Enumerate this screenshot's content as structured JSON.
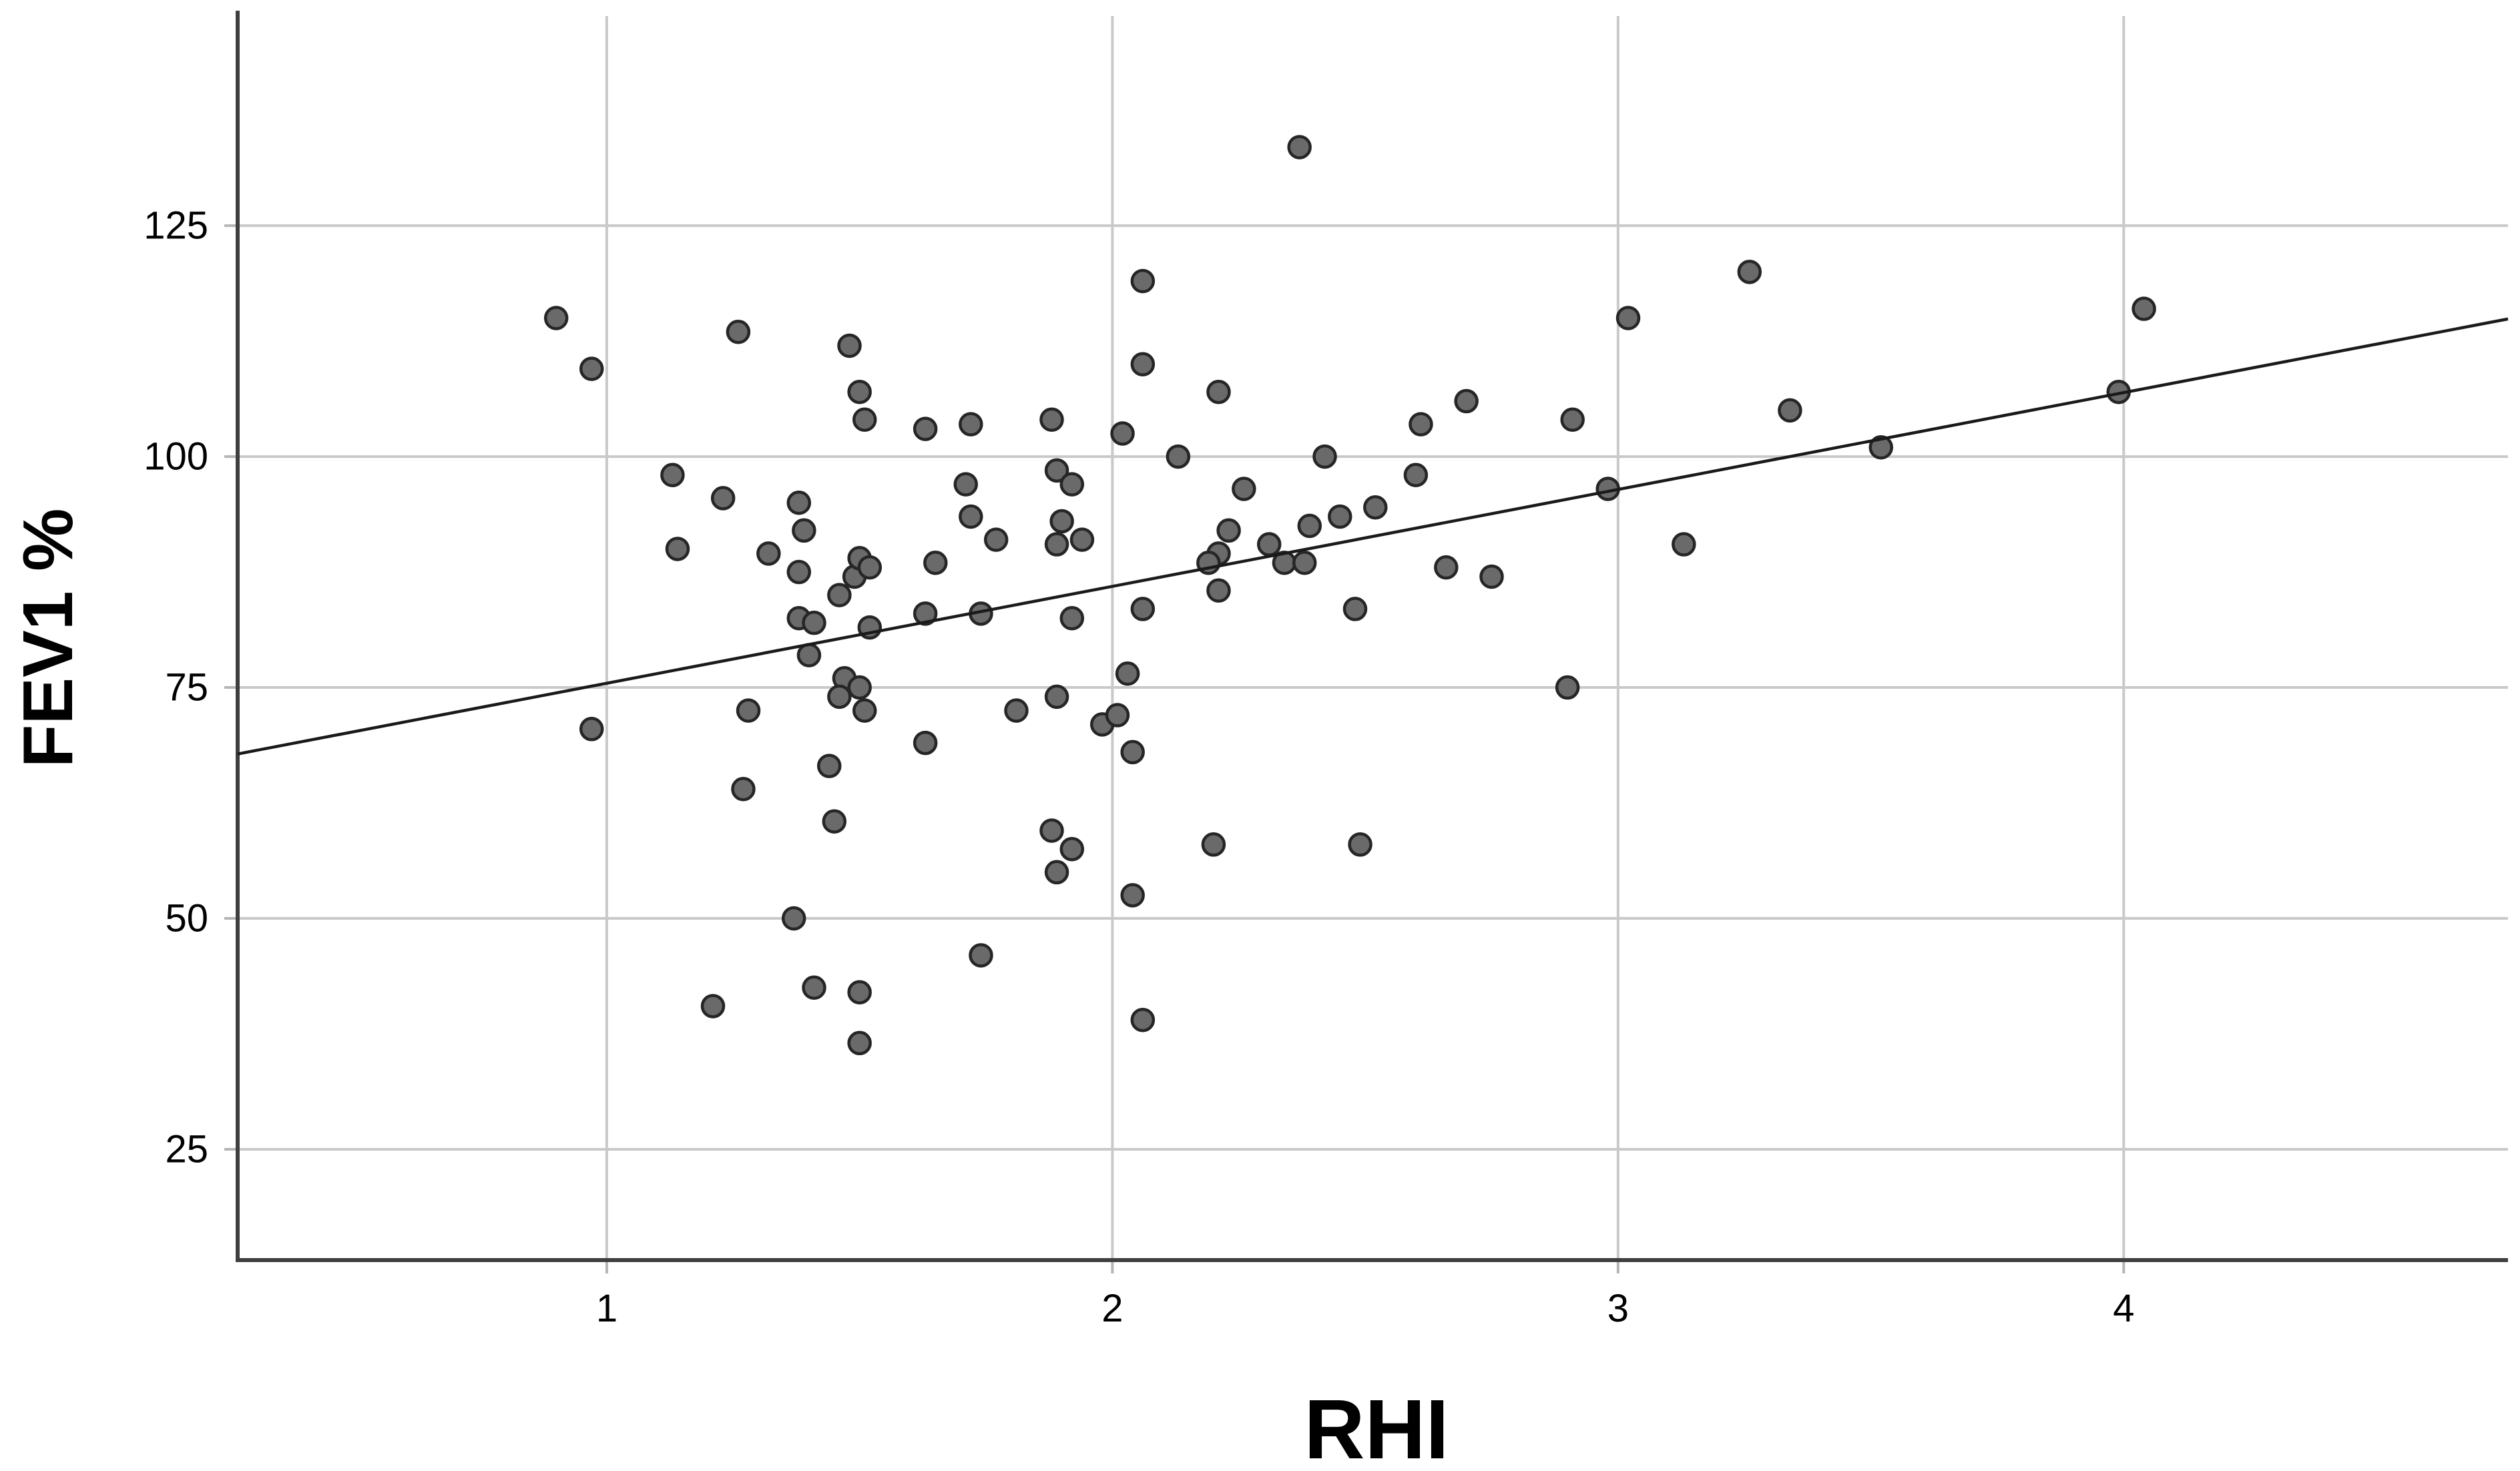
{
  "chart_data": {
    "type": "scatter",
    "title": "",
    "xlabel": "RHI",
    "ylabel": "FEV1 %",
    "x_ticks": [
      1,
      2,
      3,
      4
    ],
    "y_ticks": [
      125,
      100,
      75,
      50,
      25
    ],
    "xlim": [
      0.27,
      4.76
    ],
    "ylim": [
      13.0,
      147.7
    ],
    "grid": true,
    "legend": "none",
    "marker": "filled-circle",
    "points": [
      [
        0.9,
        115
      ],
      [
        0.97,
        109.5
      ],
      [
        1.26,
        113.5
      ],
      [
        1.48,
        112
      ],
      [
        1.5,
        107
      ],
      [
        1.51,
        104
      ],
      [
        1.13,
        98
      ],
      [
        2.37,
        133.5
      ],
      [
        2.06,
        119
      ],
      [
        2.06,
        110
      ],
      [
        2.21,
        107
      ],
      [
        1.63,
        103
      ],
      [
        1.72,
        103.5
      ],
      [
        1.88,
        104
      ],
      [
        2.02,
        102.5
      ],
      [
        2.13,
        100
      ],
      [
        3.26,
        120
      ],
      [
        3.02,
        115
      ],
      [
        2.7,
        106
      ],
      [
        2.61,
        103.5
      ],
      [
        2.91,
        104
      ],
      [
        3.34,
        105
      ],
      [
        2.42,
        100
      ],
      [
        4.04,
        116
      ],
      [
        3.99,
        107
      ],
      [
        3.52,
        101
      ],
      [
        1.23,
        95.5
      ],
      [
        1.38,
        95
      ],
      [
        1.39,
        92
      ],
      [
        1.14,
        90
      ],
      [
        1.32,
        89.5
      ],
      [
        1.38,
        87.5
      ],
      [
        1.46,
        85
      ],
      [
        1.49,
        87
      ],
      [
        1.5,
        89
      ],
      [
        1.52,
        88
      ],
      [
        1.38,
        82.5
      ],
      [
        1.41,
        82
      ],
      [
        1.4,
        78.5
      ],
      [
        1.47,
        76
      ],
      [
        1.46,
        74
      ],
      [
        1.5,
        75
      ],
      [
        1.51,
        72.5
      ],
      [
        1.28,
        72.5
      ],
      [
        0.97,
        70.5
      ],
      [
        1.27,
        64
      ],
      [
        1.44,
        66.5
      ],
      [
        1.45,
        60.5
      ],
      [
        1.71,
        97
      ],
      [
        1.89,
        98.5
      ],
      [
        1.92,
        97
      ],
      [
        1.72,
        93.5
      ],
      [
        1.9,
        93
      ],
      [
        1.94,
        91
      ],
      [
        1.89,
        90.5
      ],
      [
        1.77,
        91
      ],
      [
        1.65,
        88.5
      ],
      [
        1.63,
        83
      ],
      [
        1.74,
        83
      ],
      [
        1.92,
        82.5
      ],
      [
        2.06,
        83.5
      ],
      [
        1.52,
        81.5
      ],
      [
        2.03,
        76.5
      ],
      [
        1.89,
        74
      ],
      [
        1.81,
        72.5
      ],
      [
        1.98,
        71
      ],
      [
        2.01,
        72
      ],
      [
        2.04,
        68
      ],
      [
        1.63,
        69
      ],
      [
        1.88,
        59.5
      ],
      [
        1.92,
        57.5
      ],
      [
        1.89,
        55
      ],
      [
        2.2,
        58
      ],
      [
        2.26,
        96.5
      ],
      [
        2.23,
        92
      ],
      [
        2.21,
        89.5
      ],
      [
        2.19,
        88.5
      ],
      [
        2.31,
        90.5
      ],
      [
        2.34,
        88.5
      ],
      [
        2.38,
        88.5
      ],
      [
        2.39,
        92.5
      ],
      [
        2.21,
        85.5
      ],
      [
        2.45,
        93.5
      ],
      [
        2.52,
        94.5
      ],
      [
        2.6,
        98
      ],
      [
        2.48,
        83.5
      ],
      [
        2.66,
        88
      ],
      [
        2.75,
        87
      ],
      [
        2.98,
        96.5
      ],
      [
        3.13,
        90.5
      ],
      [
        2.9,
        75
      ],
      [
        2.49,
        58
      ],
      [
        1.37,
        50
      ],
      [
        1.41,
        42.5
      ],
      [
        1.21,
        40.5
      ],
      [
        1.5,
        42
      ],
      [
        1.5,
        36.5
      ],
      [
        2.04,
        52.5
      ],
      [
        1.74,
        46
      ],
      [
        2.06,
        39
      ]
    ],
    "trend_line": {
      "slope": 10.5,
      "intercept": 65.0,
      "x_start": 0.27,
      "y_start": 67.8,
      "x_end": 4.76,
      "y_end": 114.9
    }
  },
  "colors": {
    "background": "#ffffff",
    "point_fill": "#6a6a6a",
    "point_stroke": "#262626",
    "gridline": "#c9c9c9",
    "tick": "#b5b5b5",
    "axis_line": "#3f3f3f",
    "trend_line": "#1a1a1a",
    "text": "#000000"
  }
}
